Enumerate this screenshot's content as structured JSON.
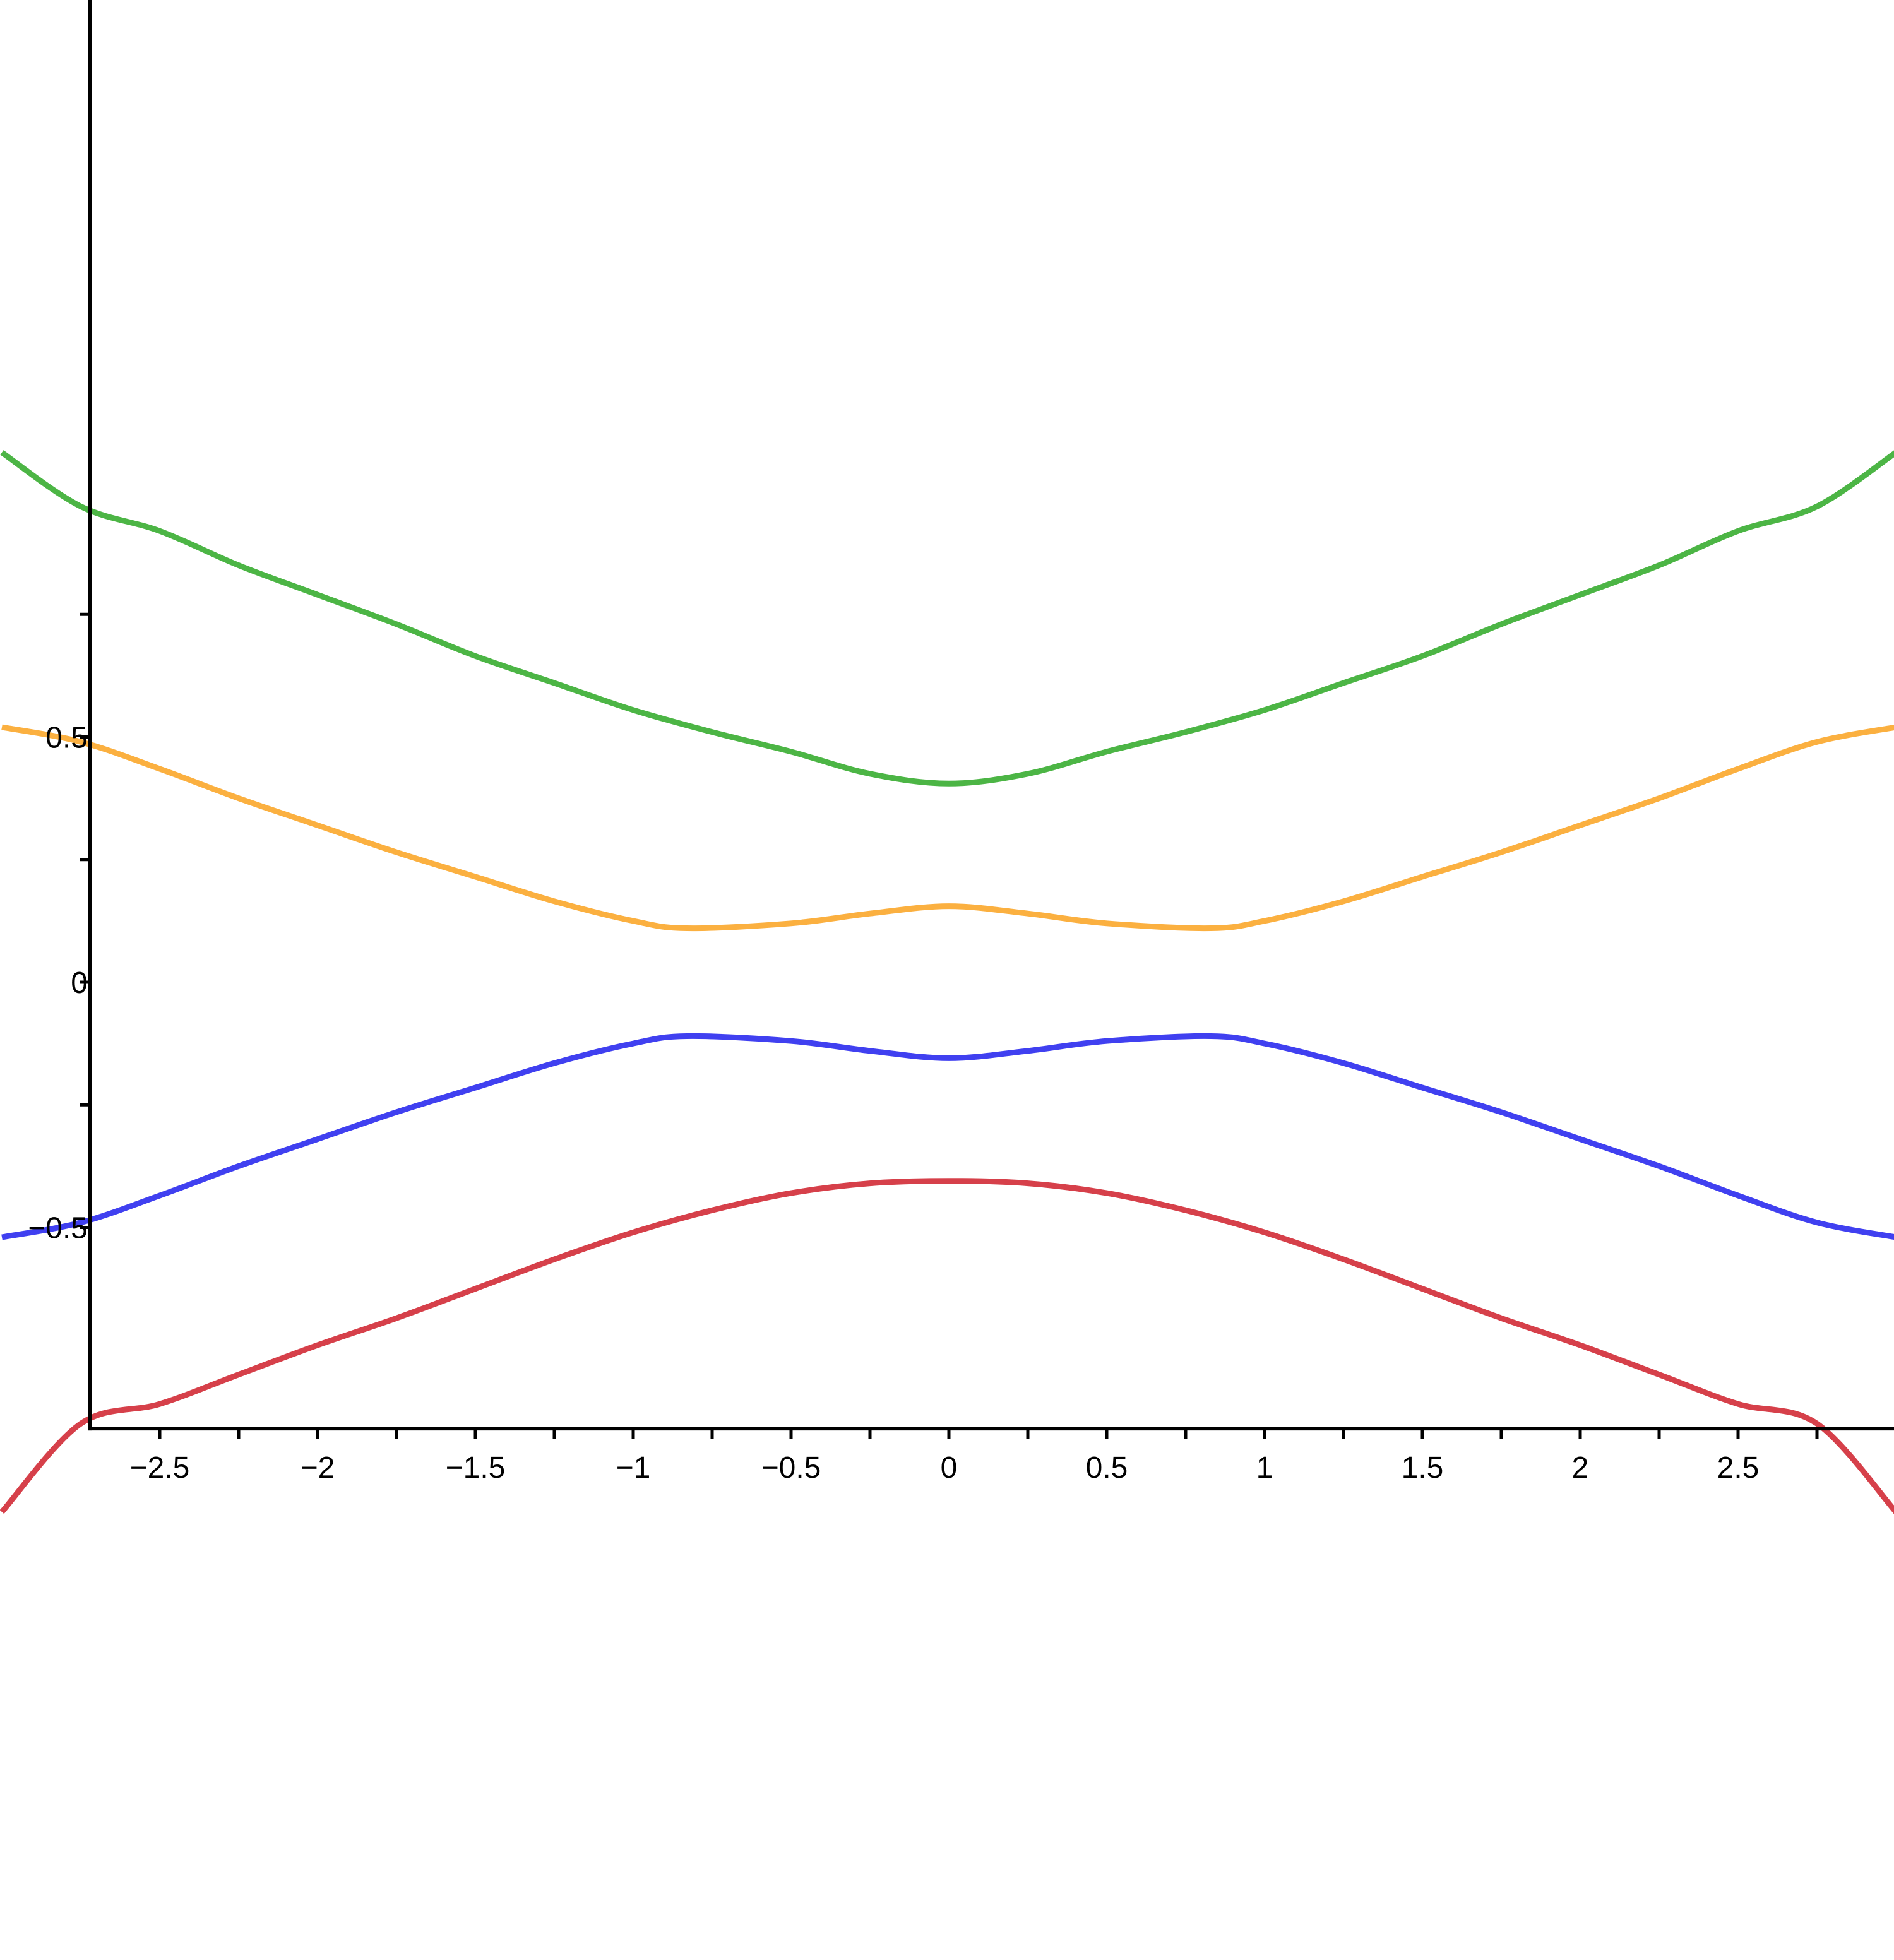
{
  "chart_data": {
    "type": "line",
    "title": "",
    "xlabel": "",
    "ylabel": "",
    "xlim": [
      -2.72,
      3.0
    ],
    "ylim": [
      -0.91,
      1.0
    ],
    "grid": false,
    "x_ticks": [
      -2.5,
      -2,
      -1.5,
      -1,
      -0.5,
      0,
      0.5,
      1,
      1.5,
      2,
      2.5
    ],
    "x_tick_labels": [
      "−2.5",
      "−2",
      "−1.5",
      "−1",
      "−0.5",
      "0",
      "0.5",
      "1",
      "1.5",
      "2",
      "2.5"
    ],
    "x_minor_ticks": [
      -2.25,
      -1.75,
      -1.25,
      -0.75,
      -0.25,
      0.25,
      0.75,
      1.25,
      1.75,
      2.25,
      2.75
    ],
    "y_ticks": [
      -0.5,
      0,
      0.5
    ],
    "y_tick_labels": [
      "−0.5",
      "0",
      "0.5"
    ],
    "y_minor_ticks": [
      -0.25,
      0.25,
      0.75
    ],
    "series": [
      {
        "color": "#4cb545",
        "x": [
          -3.0,
          -2.75,
          -2.5,
          -2.25,
          -2.0,
          -1.75,
          -1.5,
          -1.25,
          -1.0,
          -0.75,
          -0.5,
          -0.25,
          0,
          0.25,
          0.5,
          0.75,
          1.0,
          1.25,
          1.5,
          1.75,
          2.0,
          2.25,
          2.5,
          2.75,
          3.0
        ],
        "values": [
          1.08,
          0.97,
          0.92,
          0.85,
          0.79,
          0.73,
          0.665,
          0.61,
          0.555,
          0.51,
          0.47,
          0.425,
          0.405,
          0.425,
          0.47,
          0.51,
          0.555,
          0.61,
          0.665,
          0.73,
          0.79,
          0.85,
          0.92,
          0.97,
          1.08
        ]
      },
      {
        "color": "#fbb040",
        "x": [
          -3.0,
          -2.75,
          -2.5,
          -2.25,
          -2.0,
          -1.75,
          -1.5,
          -1.25,
          -1.0,
          -0.83,
          -0.5,
          -0.25,
          0,
          0.25,
          0.5,
          0.83,
          1.0,
          1.25,
          1.5,
          1.75,
          2.0,
          2.25,
          2.5,
          2.75,
          3.0
        ],
        "values": [
          0.52,
          0.49,
          0.435,
          0.375,
          0.32,
          0.265,
          0.215,
          0.165,
          0.125,
          0.11,
          0.12,
          0.14,
          0.155,
          0.14,
          0.12,
          0.11,
          0.125,
          0.165,
          0.215,
          0.265,
          0.32,
          0.375,
          0.435,
          0.49,
          0.52
        ]
      },
      {
        "color": "#4040f0",
        "x": [
          -3.0,
          -2.75,
          -2.5,
          -2.25,
          -2.0,
          -1.75,
          -1.5,
          -1.25,
          -1.0,
          -0.83,
          -0.5,
          -0.25,
          0,
          0.25,
          0.5,
          0.83,
          1.0,
          1.25,
          1.5,
          1.75,
          2.0,
          2.25,
          2.5,
          2.75,
          3.0
        ],
        "values": [
          -0.52,
          -0.49,
          -0.435,
          -0.375,
          -0.32,
          -0.265,
          -0.215,
          -0.165,
          -0.125,
          -0.11,
          -0.12,
          -0.14,
          -0.155,
          -0.14,
          -0.12,
          -0.11,
          -0.125,
          -0.165,
          -0.215,
          -0.265,
          -0.32,
          -0.375,
          -0.435,
          -0.49,
          -0.52
        ]
      },
      {
        "color": "#d6404a",
        "x": [
          -3.0,
          -2.75,
          -2.5,
          -2.25,
          -2.0,
          -1.75,
          -1.5,
          -1.25,
          -1.0,
          -0.75,
          -0.5,
          -0.25,
          0,
          0.25,
          0.5,
          0.75,
          1.0,
          1.25,
          1.5,
          1.75,
          2.0,
          2.25,
          2.5,
          2.75,
          3.0
        ],
        "values": [
          -1.08,
          -0.9,
          -0.86,
          -0.8,
          -0.74,
          -0.685,
          -0.625,
          -0.565,
          -0.51,
          -0.465,
          -0.43,
          -0.41,
          -0.405,
          -0.41,
          -0.43,
          -0.465,
          -0.51,
          -0.565,
          -0.625,
          -0.685,
          -0.74,
          -0.8,
          -0.86,
          -0.9,
          -1.08
        ]
      }
    ]
  }
}
